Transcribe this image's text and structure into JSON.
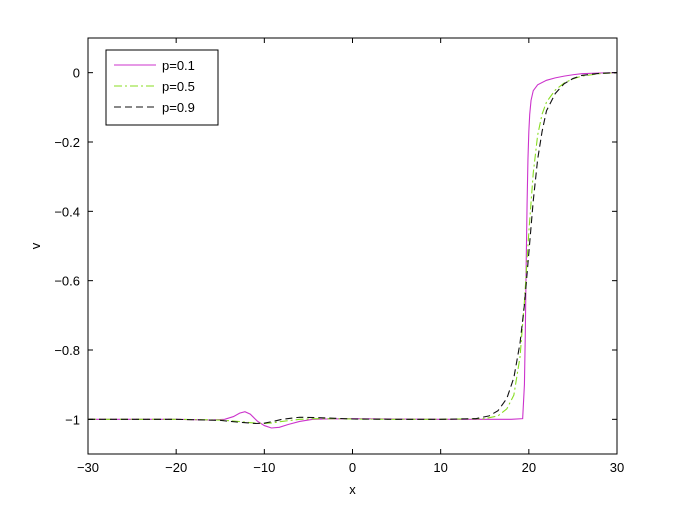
{
  "chart_data": {
    "type": "line",
    "title": "",
    "xlabel": "x",
    "ylabel": "v",
    "xlim": [
      -30,
      30
    ],
    "ylim": [
      -1.1,
      0.1
    ],
    "xticks": [
      -30,
      -20,
      -10,
      0,
      10,
      20,
      30
    ],
    "xtick_labels": [
      "−30",
      "−20",
      "−10",
      "0",
      "10",
      "20",
      "30"
    ],
    "yticks": [
      0,
      -0.2,
      -0.4,
      -0.6,
      -0.8,
      -1
    ],
    "ytick_labels": [
      "0",
      "−0.2",
      "−0.4",
      "−0.6",
      "−0.8",
      "−1"
    ],
    "grid": false,
    "legend_position": "top-left",
    "series": [
      {
        "name": "p=0.1",
        "color": "#cc33cc",
        "dash": "solid",
        "x": [
          -30,
          -20,
          -16,
          -14.5,
          -13.5,
          -12.8,
          -12.2,
          -11.6,
          -10.8,
          -10,
          -9.2,
          -8.3,
          -7.3,
          -6,
          -4.5,
          -3,
          0,
          5,
          10,
          15,
          18,
          19.3,
          19.5,
          19.6,
          19.7,
          19.8,
          19.9,
          20,
          20.1,
          20.25,
          20.5,
          21,
          22,
          23,
          24,
          25,
          26,
          28,
          30
        ],
        "y": [
          -1.0,
          -1.0,
          -1.002,
          -1.0,
          -0.992,
          -0.982,
          -0.978,
          -0.985,
          -1.005,
          -1.018,
          -1.025,
          -1.023,
          -1.015,
          -1.006,
          -1.0,
          -0.999,
          -0.998,
          -0.999,
          -1.0,
          -1.0,
          -1.0,
          -0.998,
          -0.9,
          -0.75,
          -0.55,
          -0.38,
          -0.25,
          -0.17,
          -0.12,
          -0.08,
          -0.052,
          -0.035,
          -0.022,
          -0.015,
          -0.01,
          -0.006,
          -0.003,
          -0.001,
          0.0
        ]
      },
      {
        "name": "p=0.5",
        "color": "#88dd22",
        "dash": "dashdot",
        "x": [
          -30,
          -20,
          -15,
          -13,
          -11,
          -10,
          -9,
          -8,
          -6,
          -4,
          -2,
          0,
          5,
          10,
          15,
          16.5,
          17.5,
          18.3,
          19,
          19.5,
          20,
          20.5,
          21,
          21.5,
          22,
          23,
          24,
          25,
          26,
          28,
          30
        ],
        "y": [
          -1.0,
          -1.0,
          -1.002,
          -1.006,
          -1.011,
          -1.012,
          -1.01,
          -1.006,
          -1.0,
          -0.998,
          -0.998,
          -0.999,
          -1.0,
          -1.0,
          -0.998,
          -0.99,
          -0.97,
          -0.93,
          -0.82,
          -0.66,
          -0.46,
          -0.29,
          -0.18,
          -0.12,
          -0.085,
          -0.05,
          -0.03,
          -0.018,
          -0.01,
          -0.003,
          0.0
        ]
      },
      {
        "name": "p=0.9",
        "color": "#111111",
        "dash": "dashed",
        "x": [
          -30,
          -20,
          -15,
          -13,
          -11,
          -10,
          -9,
          -8,
          -6,
          -4,
          -2,
          0,
          5,
          10,
          14,
          15.5,
          16.5,
          17.5,
          18.3,
          19,
          19.5,
          20,
          20.5,
          21,
          21.5,
          22,
          23,
          24,
          25,
          26,
          28,
          30
        ],
        "y": [
          -1.0,
          -1.0,
          -1.003,
          -1.008,
          -1.012,
          -1.011,
          -1.006,
          -1.0,
          -0.994,
          -0.995,
          -0.997,
          -0.999,
          -1.0,
          -1.0,
          -0.998,
          -0.99,
          -0.975,
          -0.94,
          -0.88,
          -0.78,
          -0.67,
          -0.52,
          -0.37,
          -0.25,
          -0.17,
          -0.11,
          -0.06,
          -0.032,
          -0.017,
          -0.008,
          -0.002,
          0.0
        ]
      }
    ]
  }
}
